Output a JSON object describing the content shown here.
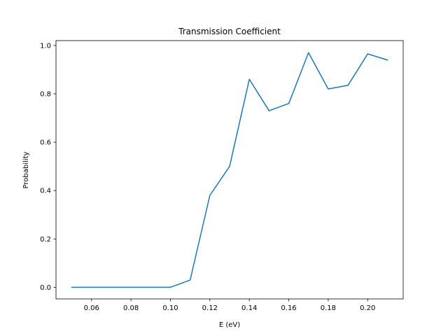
{
  "chart_data": {
    "type": "line",
    "title": "Transmission Coefficient",
    "xlabel": "E (eV)",
    "ylabel": "Probability",
    "x": [
      0.05,
      0.06,
      0.07,
      0.08,
      0.09,
      0.1,
      0.11,
      0.12,
      0.13,
      0.14,
      0.15,
      0.16,
      0.17,
      0.18,
      0.19,
      0.2,
      0.21
    ],
    "series": [
      {
        "values": [
          0.0,
          0.0,
          0.0,
          0.0,
          0.0,
          0.0,
          0.03,
          0.38,
          0.5,
          0.86,
          0.73,
          0.76,
          0.97,
          0.82,
          0.835,
          0.965,
          0.94
        ]
      }
    ],
    "xlim": [
      0.042,
      0.218
    ],
    "ylim": [
      -0.048,
      1.02
    ],
    "xticks": [
      "0.06",
      "0.08",
      "0.10",
      "0.12",
      "0.14",
      "0.16",
      "0.18",
      "0.20"
    ],
    "yticks": [
      "0.0",
      "0.2",
      "0.4",
      "0.6",
      "0.8",
      "1.0"
    ],
    "grid": false,
    "line_color": "#1f77b4"
  }
}
